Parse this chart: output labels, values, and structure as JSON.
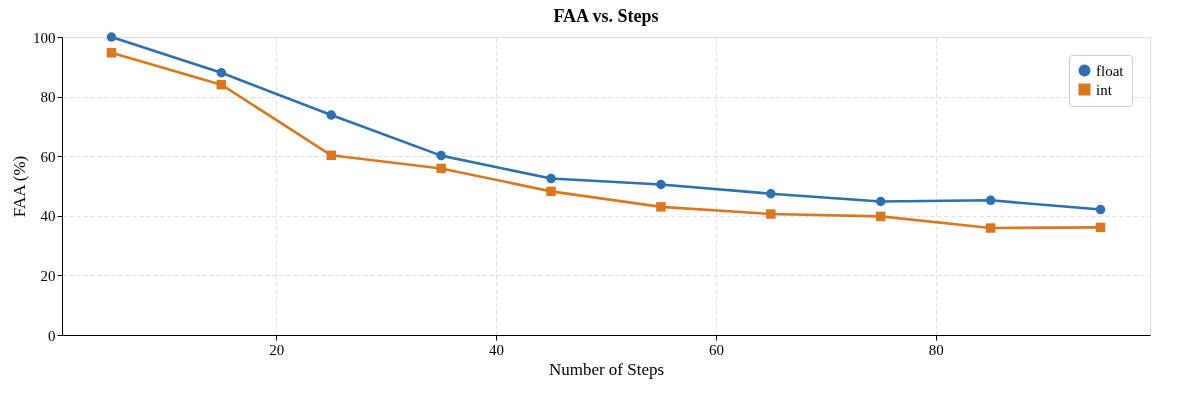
{
  "chart_data": {
    "type": "line",
    "title": "FAA vs. Steps",
    "xlabel": "Number of Steps",
    "ylabel": "FAA (%)",
    "x": [
      5,
      15,
      25,
      35,
      45,
      55,
      65,
      75,
      85,
      95
    ],
    "series": [
      {
        "name": "float",
        "color": "#2e6fad",
        "marker": "circle",
        "values": [
          100,
          88.0,
          73.8,
          60.2,
          52.5,
          50.5,
          47.4,
          44.8,
          45.2,
          42.1
        ]
      },
      {
        "name": "int",
        "color": "#d9781f",
        "marker": "square",
        "values": [
          94.7,
          84.0,
          60.3,
          55.9,
          48.2,
          43.0,
          40.6,
          39.8,
          35.9,
          36.1
        ]
      }
    ],
    "xlim": [
      0.5,
      99.5
    ],
    "xticks": [
      20,
      40,
      60,
      80
    ],
    "ylim": [
      0,
      100
    ],
    "yticks": [
      0,
      20,
      40,
      60,
      80,
      100
    ],
    "grid": true,
    "legend": "top right",
    "line_style": "solid"
  }
}
